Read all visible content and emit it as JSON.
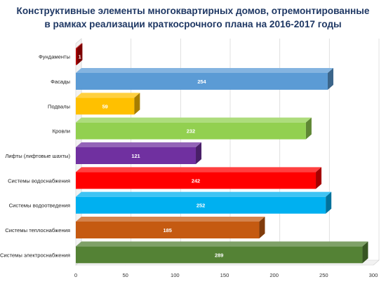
{
  "chart_data": {
    "type": "bar",
    "orientation": "horizontal",
    "style": "3d",
    "title_lines": [
      "Конструктивные элементы многоквартирных домов, отремонтированные",
      "в рамках реализации краткосрочного плана на 2016-2017 годы"
    ],
    "categories": [
      "Фундаменты",
      "Фасады",
      "Подвалы",
      "Кровли",
      "Лифты (лифтовые шахты)",
      "Системы водоснабжения",
      "Системы водоотведения",
      "Системы теплоснабжения",
      "Системы электроснабжения"
    ],
    "values": [
      1,
      254,
      59,
      232,
      121,
      242,
      252,
      185,
      289
    ],
    "colors": [
      "#c00000",
      "#5b9bd5",
      "#ffc000",
      "#92d050",
      "#7030a0",
      "#ff0000",
      "#00b0f0",
      "#c55a11",
      "#548235"
    ],
    "xlim": [
      0,
      300
    ],
    "xticks": [
      0,
      50,
      100,
      150,
      200,
      250,
      300
    ],
    "grid": true,
    "legend": "none"
  }
}
